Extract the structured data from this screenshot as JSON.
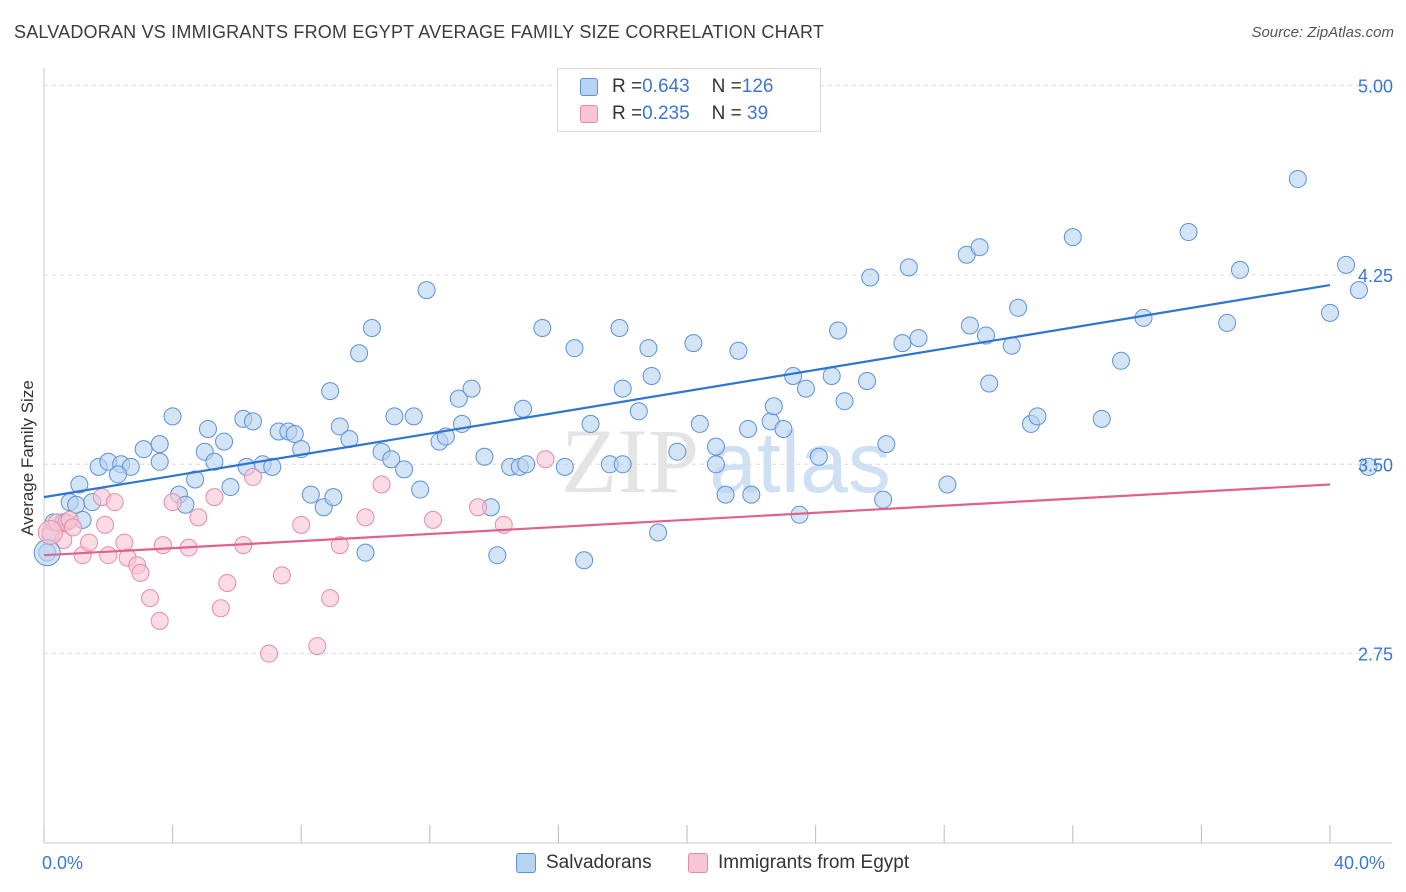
{
  "title": "SALVADORAN VS IMMIGRANTS FROM EGYPT AVERAGE FAMILY SIZE CORRELATION CHART",
  "source": "Source: ZipAtlas.com",
  "watermark": {
    "zip": "ZIP",
    "atlas": "atlas"
  },
  "legend": {
    "rows": [
      {
        "r_label": "R = ",
        "r_value": "0.643",
        "n_label": "N = ",
        "n_value": "126"
      },
      {
        "r_label": "R = ",
        "r_value": "0.235",
        "n_label": "N = ",
        "n_value": " 39"
      }
    ]
  },
  "bottom_legend": {
    "salvadorans": "Salvadorans",
    "egypt": "Immigrants from Egypt"
  },
  "colors": {
    "blue_fill": "#b8d2f2",
    "blue_stroke": "#5b92d6",
    "blue_line": "#2f74d0",
    "pink_fill": "#f8c5d4",
    "pink_stroke": "#e88aa8",
    "pink_line": "#e0628c",
    "axis_label": "#3a78d0",
    "grid": "#dcdcdc"
  },
  "chart_data": {
    "type": "scatter",
    "title": "SALVADORAN VS IMMIGRANTS FROM EGYPT AVERAGE FAMILY SIZE CORRELATION CHART",
    "xlabel": "",
    "ylabel": "Average Family Size",
    "xlim": [
      0,
      40
    ],
    "ylim": [
      2.0,
      5.05
    ],
    "x_tick_labels": [
      "0.0%",
      "40.0%"
    ],
    "y_ticks": [
      2.75,
      3.5,
      4.25,
      5.0
    ],
    "y_tick_labels": [
      "2.75",
      "3.50",
      "4.25",
      "5.00"
    ],
    "grid": true,
    "legend_position": "top-center",
    "series": [
      {
        "name": "Salvadorans",
        "R": 0.643,
        "N": 126,
        "trend": {
          "x": [
            0,
            40
          ],
          "y": [
            3.37,
            4.21
          ]
        },
        "points": [
          [
            0.1,
            3.15
          ],
          [
            0.2,
            3.22
          ],
          [
            0.3,
            3.27
          ],
          [
            0.6,
            3.27
          ],
          [
            0.8,
            3.35
          ],
          [
            1.0,
            3.34
          ],
          [
            1.1,
            3.42
          ],
          [
            1.2,
            3.28
          ],
          [
            1.5,
            3.35
          ],
          [
            1.7,
            3.49
          ],
          [
            2.0,
            3.51
          ],
          [
            2.4,
            3.5
          ],
          [
            2.7,
            3.49
          ],
          [
            3.1,
            3.56
          ],
          [
            3.6,
            3.51
          ],
          [
            4.0,
            3.69
          ],
          [
            4.2,
            3.38
          ],
          [
            4.4,
            3.34
          ],
          [
            3.6,
            3.58
          ],
          [
            4.7,
            3.44
          ],
          [
            5.0,
            3.55
          ],
          [
            5.1,
            3.64
          ],
          [
            5.6,
            3.59
          ],
          [
            5.3,
            3.51
          ],
          [
            5.8,
            3.41
          ],
          [
            6.2,
            3.68
          ],
          [
            6.5,
            3.67
          ],
          [
            6.8,
            3.5
          ],
          [
            7.1,
            3.49
          ],
          [
            7.3,
            3.63
          ],
          [
            7.6,
            3.63
          ],
          [
            7.8,
            3.62
          ],
          [
            8.0,
            3.56
          ],
          [
            8.3,
            3.38
          ],
          [
            8.7,
            3.33
          ],
          [
            8.9,
            3.79
          ],
          [
            9.2,
            3.65
          ],
          [
            9.5,
            3.6
          ],
          [
            9.8,
            3.94
          ],
          [
            10.0,
            3.15
          ],
          [
            10.2,
            4.04
          ],
          [
            10.5,
            3.55
          ],
          [
            10.8,
            3.52
          ],
          [
            10.9,
            3.69
          ],
          [
            11.2,
            3.48
          ],
          [
            11.5,
            3.69
          ],
          [
            11.7,
            3.4
          ],
          [
            11.9,
            4.19
          ],
          [
            12.3,
            3.59
          ],
          [
            12.5,
            3.61
          ],
          [
            12.9,
            3.76
          ],
          [
            13.0,
            3.66
          ],
          [
            13.3,
            3.8
          ],
          [
            13.7,
            3.53
          ],
          [
            13.9,
            3.33
          ],
          [
            14.1,
            3.14
          ],
          [
            14.5,
            3.49
          ],
          [
            14.8,
            3.49
          ],
          [
            15.0,
            3.5
          ],
          [
            14.9,
            3.72
          ],
          [
            15.5,
            4.04
          ],
          [
            16.2,
            3.49
          ],
          [
            16.5,
            3.96
          ],
          [
            17.0,
            3.66
          ],
          [
            16.8,
            3.12
          ],
          [
            17.6,
            3.5
          ],
          [
            17.9,
            4.04
          ],
          [
            18.0,
            3.8
          ],
          [
            18.5,
            3.71
          ],
          [
            18.8,
            3.96
          ],
          [
            18.9,
            3.85
          ],
          [
            19.1,
            3.23
          ],
          [
            19.7,
            3.55
          ],
          [
            20.2,
            3.98
          ],
          [
            20.4,
            3.66
          ],
          [
            20.9,
            3.5
          ],
          [
            21.2,
            3.38
          ],
          [
            21.6,
            3.95
          ],
          [
            21.9,
            3.64
          ],
          [
            22.0,
            3.38
          ],
          [
            22.6,
            3.67
          ],
          [
            22.7,
            3.73
          ],
          [
            23.0,
            3.64
          ],
          [
            23.3,
            3.85
          ],
          [
            23.7,
            3.8
          ],
          [
            23.5,
            3.3
          ],
          [
            24.1,
            3.53
          ],
          [
            24.5,
            3.85
          ],
          [
            24.7,
            4.03
          ],
          [
            24.9,
            3.75
          ],
          [
            25.7,
            4.24
          ],
          [
            25.6,
            3.83
          ],
          [
            26.1,
            3.36
          ],
          [
            26.2,
            3.58
          ],
          [
            26.7,
            3.98
          ],
          [
            26.9,
            4.28
          ],
          [
            27.2,
            4.0
          ],
          [
            28.1,
            3.42
          ],
          [
            28.7,
            4.33
          ],
          [
            28.8,
            4.05
          ],
          [
            29.1,
            4.36
          ],
          [
            29.3,
            4.01
          ],
          [
            29.4,
            3.82
          ],
          [
            30.1,
            3.97
          ],
          [
            30.3,
            4.12
          ],
          [
            30.7,
            3.66
          ],
          [
            30.9,
            3.69
          ],
          [
            32.0,
            4.4
          ],
          [
            32.9,
            3.68
          ],
          [
            33.5,
            3.91
          ],
          [
            34.2,
            4.08
          ],
          [
            35.6,
            4.42
          ],
          [
            36.8,
            4.06
          ],
          [
            37.2,
            4.27
          ],
          [
            39.0,
            4.63
          ],
          [
            40.0,
            4.1
          ],
          [
            40.5,
            4.29
          ],
          [
            40.9,
            4.19
          ],
          [
            41.2,
            3.49
          ],
          [
            20.9,
            3.57
          ],
          [
            9.0,
            3.37
          ],
          [
            6.3,
            3.49
          ],
          [
            2.3,
            3.46
          ],
          [
            18.0,
            3.5
          ]
        ]
      },
      {
        "name": "Immigrants from Egypt",
        "R": 0.235,
        "N": 39,
        "trend": {
          "x": [
            0,
            40
          ],
          "y": [
            3.14,
            3.42
          ]
        },
        "points": [
          [
            0.2,
            3.23
          ],
          [
            0.4,
            3.27
          ],
          [
            0.6,
            3.2
          ],
          [
            0.7,
            3.27
          ],
          [
            0.8,
            3.28
          ],
          [
            0.9,
            3.25
          ],
          [
            1.2,
            3.14
          ],
          [
            1.4,
            3.19
          ],
          [
            1.8,
            3.37
          ],
          [
            1.9,
            3.26
          ],
          [
            2.0,
            3.14
          ],
          [
            2.2,
            3.35
          ],
          [
            2.5,
            3.19
          ],
          [
            2.6,
            3.13
          ],
          [
            2.9,
            3.1
          ],
          [
            3.0,
            3.07
          ],
          [
            3.3,
            2.97
          ],
          [
            3.6,
            2.88
          ],
          [
            3.7,
            3.18
          ],
          [
            4.0,
            3.35
          ],
          [
            4.5,
            3.17
          ],
          [
            4.8,
            3.29
          ],
          [
            5.3,
            3.37
          ],
          [
            5.5,
            2.93
          ],
          [
            5.7,
            3.03
          ],
          [
            6.2,
            3.18
          ],
          [
            6.5,
            3.45
          ],
          [
            7.0,
            2.75
          ],
          [
            7.4,
            3.06
          ],
          [
            8.0,
            3.26
          ],
          [
            8.5,
            2.78
          ],
          [
            8.9,
            2.97
          ],
          [
            9.2,
            3.18
          ],
          [
            10.0,
            3.29
          ],
          [
            10.5,
            3.42
          ],
          [
            12.1,
            3.28
          ],
          [
            13.5,
            3.33
          ],
          [
            14.3,
            3.26
          ],
          [
            15.6,
            3.52
          ]
        ]
      }
    ]
  }
}
